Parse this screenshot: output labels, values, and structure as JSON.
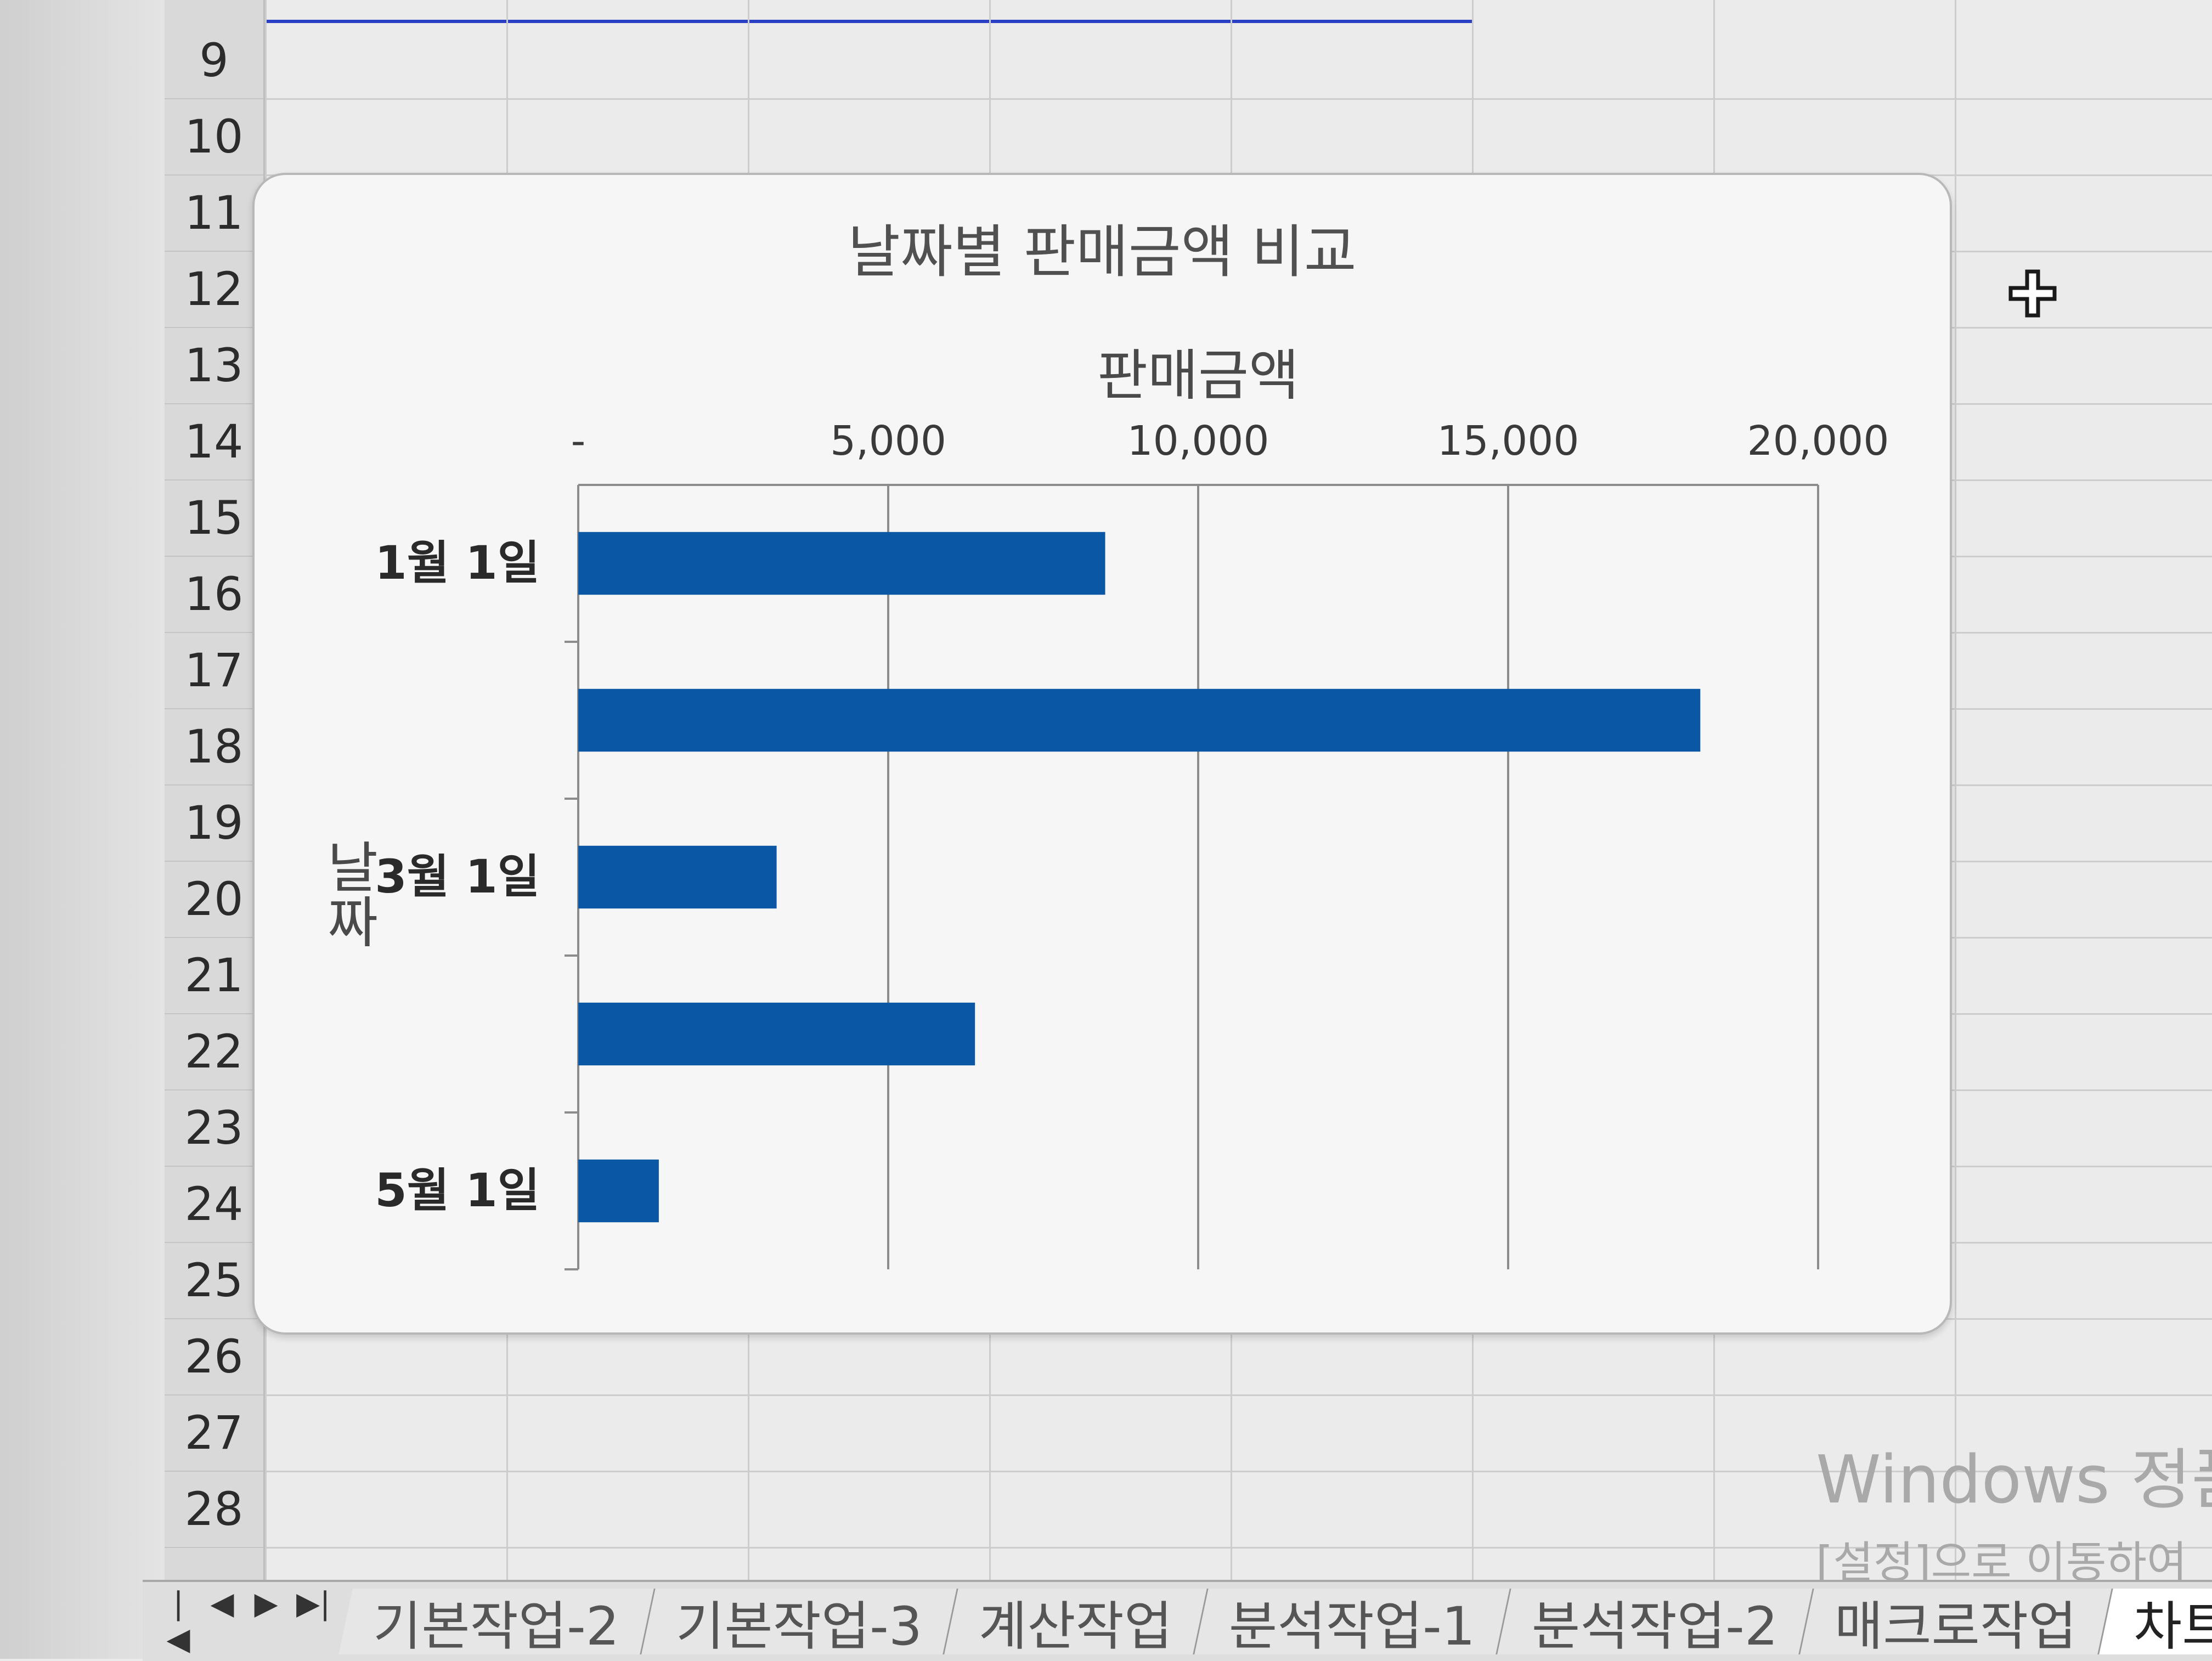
{
  "spreadsheet": {
    "row_numbers": [
      "9",
      "10",
      "11",
      "12",
      "13",
      "14",
      "15",
      "16",
      "17",
      "18",
      "19",
      "20",
      "21",
      "22",
      "23",
      "24",
      "25",
      "26",
      "27",
      "28"
    ],
    "sheet_tabs": [
      "기본작업-2",
      "기본작업-3",
      "계산작업",
      "분석작업-1",
      "분석작업-2",
      "매크로작업",
      "차트작"
    ],
    "active_tab_index": 6,
    "nav_buttons": [
      "|◀",
      "◀",
      "▶",
      "▶|"
    ]
  },
  "watermark": {
    "line1": "Windows 정품",
    "line2": "[설정]으로 이동하여"
  },
  "icons": {
    "cursor": "move-cross-icon"
  },
  "chart_data": {
    "type": "bar",
    "orientation": "horizontal",
    "title": "날짜별 판매금액 비교",
    "xlabel": "판매금액",
    "ylabel": "날짜",
    "x_axis_position": "top",
    "x_ticks": [
      "-",
      "5,000",
      "10,000",
      "15,000",
      "20,000"
    ],
    "xlim": [
      0,
      20000
    ],
    "categories": [
      "1월 1일",
      "",
      "3월 1일",
      "",
      "5월 1일"
    ],
    "values": [
      8500,
      18100,
      3200,
      6400,
      1300
    ],
    "bar_color": "#0a57a6",
    "grid": true
  }
}
